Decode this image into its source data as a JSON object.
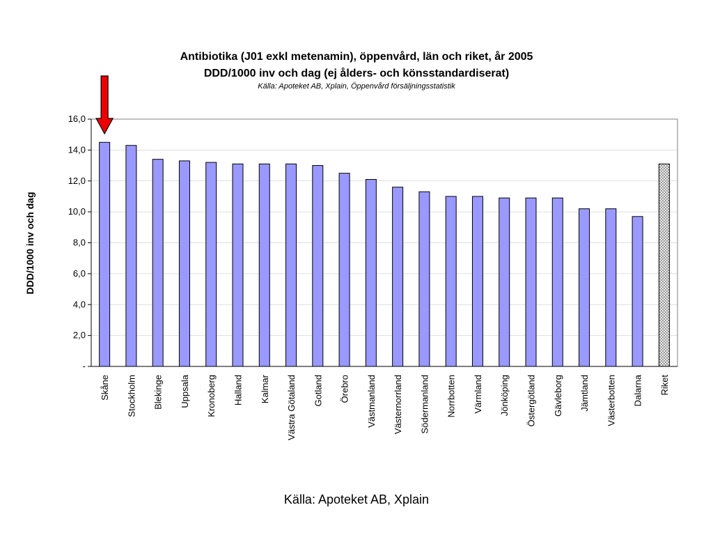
{
  "chart_data": {
    "type": "bar",
    "title": "Antibiotika (J01 exkl metenamin), öppenvård, län och riket, år 2005",
    "subtitle": "DDD/1000 inv och dag (ej ålders- och könsstandardiserat)",
    "source_note": "Källa: Apoteket AB, Xplain, Öppenvård försäljningsstatistik",
    "xlabel": "",
    "ylabel": "DDD/1000 inv och dag",
    "ylim": [
      0,
      16
    ],
    "yticks": [
      "-",
      "2,0",
      "4,0",
      "6,0",
      "8,0",
      "10,0",
      "12,0",
      "14,0",
      "16,0"
    ],
    "grid": true,
    "categories": [
      "Skåne",
      "Stockholm",
      "Blekinge",
      "Uppsala",
      "Kronoberg",
      "Halland",
      "Kalmar",
      "Västra Götaland",
      "Gotland",
      "Örebro",
      "Västmanland",
      "Västernorrland",
      "Södermanland",
      "Norrbotten",
      "Värmland",
      "Jönköping",
      "Östergötland",
      "Gävleborg",
      "Jämtland",
      "Västerbotten",
      "Dalarna",
      "Riket"
    ],
    "values": [
      14.5,
      14.3,
      13.4,
      13.3,
      13.2,
      13.1,
      13.1,
      13.1,
      13.0,
      12.5,
      12.1,
      11.6,
      11.3,
      11.0,
      11.0,
      10.9,
      10.9,
      10.9,
      10.2,
      10.2,
      9.7,
      13.1
    ],
    "highlight": "Riket",
    "arrow_target": "Skåne",
    "colors": {
      "bar": "#9999ff",
      "bar_border": "#000000",
      "highlight_pattern": "#c0c0c0",
      "arrow": "#ee0000",
      "grid": "#c0c0c0"
    }
  },
  "footer": "Källa: Apoteket AB, Xplain"
}
